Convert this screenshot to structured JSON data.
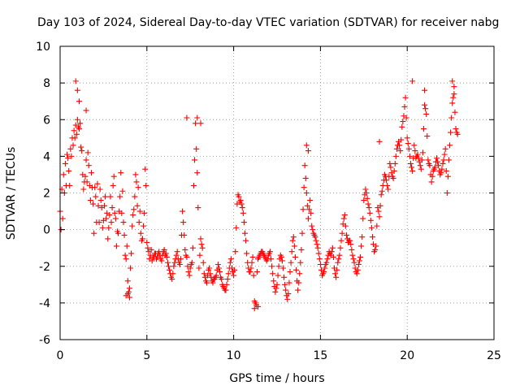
{
  "chart_data": {
    "type": "scatter",
    "title": "Day 103 of 2024, Sidereal Day-to-day VTEC variation (SDTVAR) for receiver nabg",
    "xlabel": "GPS time / hours",
    "ylabel": "SDTVAR / TECUs",
    "xlim": [
      0,
      25
    ],
    "ylim": [
      -6,
      10
    ],
    "xticks": [
      0,
      5,
      10,
      15,
      20,
      25
    ],
    "yticks": [
      -6,
      -4,
      -2,
      0,
      2,
      4,
      6,
      8,
      10
    ],
    "grid": true,
    "marker": "+",
    "series": [
      {
        "name": "SDTVAR",
        "color": "#ff0000",
        "x": [
          0.0,
          0.1,
          0.2,
          0.3,
          0.4,
          0.5,
          0.6,
          0.7,
          0.8,
          0.9,
          1.0,
          1.1,
          1.2,
          1.3,
          1.4,
          1.5,
          1.6,
          1.7,
          1.8,
          1.9,
          2.0,
          2.1,
          2.2,
          2.3,
          2.4,
          2.5,
          2.6,
          2.7,
          2.8,
          2.9,
          3.0,
          3.1,
          3.2,
          3.3,
          3.4,
          3.5,
          3.6,
          3.7,
          3.8,
          3.9,
          4.0,
          4.1,
          4.2,
          4.3,
          4.4,
          4.5,
          4.6,
          4.7,
          4.8,
          4.9,
          5.0,
          5.1,
          5.2,
          5.3,
          5.4,
          5.5,
          5.6,
          5.7,
          5.8,
          5.9,
          6.0,
          6.1,
          6.2,
          6.3,
          6.4,
          6.5,
          6.6,
          6.7,
          6.8,
          6.9,
          7.0,
          7.1,
          7.2,
          7.3,
          7.4,
          7.5,
          7.6,
          7.7,
          7.8,
          7.9,
          8.0,
          8.1,
          8.2,
          8.3,
          8.4,
          8.5,
          8.6,
          8.7,
          8.8,
          8.9,
          9.0,
          9.1,
          9.2,
          9.3,
          9.4,
          9.5,
          9.6,
          9.7,
          9.8,
          9.9,
          10.0,
          10.1,
          10.2,
          10.3,
          10.4,
          10.5,
          10.6,
          10.7,
          10.8,
          10.9,
          11.0,
          11.1,
          11.2,
          11.3,
          11.4,
          11.5,
          11.6,
          11.7,
          11.8,
          11.9,
          12.0,
          12.1,
          12.2,
          12.3,
          12.4,
          12.5,
          12.6,
          12.7,
          12.8,
          12.9,
          13.0,
          13.1,
          13.2,
          13.3,
          13.4,
          13.5,
          13.6,
          13.7,
          13.8,
          13.9,
          14.0,
          14.1,
          14.2,
          14.3,
          14.4,
          14.5,
          14.6,
          14.7,
          14.8,
          14.9,
          15.0,
          15.1,
          15.2,
          15.3,
          15.4,
          15.5,
          15.6,
          15.7,
          15.8,
          15.9,
          16.0,
          16.1,
          16.2,
          16.3,
          16.4,
          16.5,
          16.6,
          16.7,
          16.8,
          16.9,
          17.0,
          17.1,
          17.2,
          17.3,
          17.4,
          17.5,
          17.6,
          17.7,
          17.8,
          17.9,
          18.0,
          18.1,
          18.2,
          18.3,
          18.4,
          18.5,
          18.6,
          18.7,
          18.8,
          18.9,
          19.0,
          19.1,
          19.2,
          19.3,
          19.4,
          19.5,
          19.6,
          19.7,
          19.8,
          19.9,
          20.0,
          20.1,
          20.2,
          20.3,
          20.4,
          20.5,
          20.6,
          20.7,
          20.8,
          20.9,
          21.0,
          21.1,
          21.2,
          21.3,
          21.4,
          21.5,
          21.6,
          21.7,
          21.8,
          21.9,
          22.0,
          22.1,
          22.2,
          22.3,
          22.4,
          22.5,
          22.6,
          22.7,
          22.8,
          22.9,
          0.05,
          0.15,
          0.25,
          0.35,
          0.45,
          0.55,
          0.65,
          0.75,
          0.85,
          0.95,
          1.05,
          1.15,
          1.25,
          1.35,
          1.45,
          1.55,
          1.65,
          1.75,
          1.85,
          1.95,
          2.05,
          2.15,
          2.25,
          2.35,
          2.45,
          2.55,
          2.65,
          2.75,
          2.85,
          2.95,
          3.05,
          3.15,
          3.25,
          3.35,
          3.45,
          3.55,
          3.65,
          3.75,
          3.85,
          3.95,
          4.05,
          4.15,
          4.25,
          4.35,
          4.45,
          4.55,
          4.65,
          4.75,
          4.85,
          4.95,
          5.05,
          5.15,
          5.25,
          5.35,
          5.45,
          5.55,
          5.65,
          5.75,
          5.85,
          5.95,
          6.05,
          6.15,
          6.25,
          6.35,
          6.45,
          6.55,
          6.65,
          6.75,
          6.85,
          6.95,
          7.05,
          7.15,
          7.25,
          7.35,
          7.45,
          7.55,
          7.65,
          7.75,
          7.85,
          7.95,
          8.05,
          8.15,
          8.25,
          8.35,
          8.45,
          8.55,
          8.65,
          8.75,
          8.85,
          8.95,
          9.05,
          9.15,
          9.25,
          9.35,
          9.45,
          9.55,
          9.65,
          9.75,
          9.85,
          9.95,
          10.05,
          10.15,
          10.25,
          10.35,
          10.45,
          10.55,
          10.65,
          10.75,
          10.85,
          10.95,
          11.05,
          11.15,
          11.25,
          11.35,
          11.45,
          11.55,
          11.65,
          11.75,
          11.85,
          11.95,
          12.05,
          12.15,
          12.25,
          12.35,
          12.45,
          12.55,
          12.65,
          12.75,
          12.85,
          12.95,
          13.05,
          13.15,
          13.25,
          13.35,
          13.45,
          13.55,
          13.65,
          13.75,
          13.85,
          13.95,
          14.05,
          14.15,
          14.25,
          14.35,
          14.45,
          14.55,
          14.65,
          14.75,
          14.85,
          14.95,
          15.05,
          15.15,
          15.25,
          15.35,
          15.45,
          15.55,
          15.65,
          15.75,
          15.85,
          15.95,
          16.05,
          16.15,
          16.25,
          16.35,
          16.45,
          16.55,
          16.65,
          16.75,
          16.85,
          16.95,
          17.05,
          17.15,
          17.25,
          17.35,
          17.45,
          17.55,
          17.65,
          17.75,
          17.85,
          17.95,
          18.05,
          18.15,
          18.25,
          18.35,
          18.45,
          18.55,
          18.65,
          18.75,
          18.85,
          18.95,
          19.05,
          19.15,
          19.25,
          19.35,
          19.45,
          19.55,
          19.65,
          19.75,
          19.85,
          19.95,
          20.05,
          20.15,
          20.25,
          20.35,
          20.45,
          20.55,
          20.65,
          20.75,
          20.85,
          20.95,
          21.05,
          21.15,
          21.25,
          21.35,
          21.45,
          21.55,
          21.65,
          21.75,
          21.85,
          21.95,
          22.05,
          22.15,
          22.25,
          22.35,
          22.45,
          22.55,
          22.65,
          22.75,
          22.85,
          0.9,
          1.0,
          1.1,
          1.5,
          3.8,
          3.9,
          4.0,
          7.3,
          7.9,
          8.1,
          11.2,
          11.4,
          14.2,
          14.3,
          18.4,
          20.3,
          21.0,
          22.6,
          22.7
        ],
        "y": [
          1.0,
          2.2,
          3.0,
          3.6,
          4.1,
          3.2,
          4.4,
          5.0,
          5.4,
          5.7,
          6.0,
          5.5,
          4.5,
          3.0,
          2.6,
          3.8,
          4.2,
          2.4,
          3.1,
          1.4,
          2.3,
          0.4,
          1.3,
          2.2,
          1.2,
          0.5,
          1.8,
          0.9,
          0.1,
          1.8,
          1.2,
          2.9,
          0.6,
          -0.1,
          1.0,
          3.1,
          2.1,
          -0.3,
          -1.6,
          -2.8,
          -3.2,
          -1.3,
          0.8,
          1.8,
          2.6,
          2.3,
          1.0,
          -0.6,
          0.2,
          3.3,
          -0.7,
          -1.2,
          -1.4,
          -1.7,
          -1.5,
          -1.3,
          -1.5,
          -1.2,
          -1.6,
          -1.4,
          -1.1,
          -1.3,
          -1.8,
          -2.2,
          -2.6,
          -2.4,
          -1.8,
          -1.4,
          -1.6,
          -1.9,
          -0.3,
          0.4,
          -1.1,
          -1.5,
          -2.3,
          -2.1,
          -1.8,
          2.4,
          5.8,
          3.1,
          -2.1,
          -0.5,
          -1.0,
          -2.4,
          -2.8,
          -2.5,
          -2.1,
          -2.6,
          -2.9,
          -2.7,
          -2.5,
          -1.9,
          -2.3,
          -2.7,
          -3.1,
          -3.3,
          -3.0,
          -2.4,
          -1.8,
          -2.1,
          -2.5,
          -1.2,
          1.4,
          1.8,
          1.6,
          1.2,
          0.4,
          -0.6,
          -1.8,
          -2.3,
          -2.1,
          -1.5,
          -3.9,
          -4.1,
          -1.6,
          -1.4,
          -1.2,
          -1.3,
          -1.5,
          -1.7,
          -1.4,
          -1.2,
          -2.0,
          -2.8,
          -3.4,
          -3.0,
          -2.0,
          -1.4,
          -1.7,
          -2.6,
          -3.3,
          -3.8,
          -2.9,
          -1.8,
          -0.6,
          -0.9,
          -2.2,
          -3.3,
          -2.4,
          -1.1,
          1.1,
          3.5,
          2.0,
          0.6,
          1.6,
          0.2,
          -0.2,
          -0.4,
          -0.8,
          -1.3,
          -1.9,
          -2.5,
          -2.3,
          -1.9,
          -1.6,
          -1.2,
          -1.4,
          -1.0,
          -2.1,
          -2.6,
          -1.8,
          -1.4,
          -0.6,
          0.3,
          0.8,
          -0.3,
          -0.7,
          -0.6,
          -1.1,
          -1.6,
          -2.1,
          -2.4,
          -1.9,
          -1.5,
          -0.4,
          1.6,
          2.2,
          1.7,
          1.2,
          0.5,
          -0.4,
          -1.2,
          -0.9,
          1.2,
          0.7,
          1.9,
          2.4,
          3.0,
          2.7,
          2.2,
          3.6,
          3.1,
          2.8,
          3.6,
          4.4,
          4.8,
          4.3,
          5.6,
          6.2,
          7.2,
          5.0,
          4.4,
          3.6,
          3.2,
          4.6,
          3.9,
          4.1,
          3.7,
          3.3,
          4.2,
          6.8,
          6.3,
          3.8,
          3.5,
          2.6,
          3.2,
          3.4,
          3.9,
          3.5,
          3.0,
          3.3,
          3.8,
          4.4,
          2.0,
          3.8,
          5.3,
          6.9,
          7.4,
          5.5,
          5.2,
          0.0,
          0.6,
          2.0,
          2.4,
          3.9,
          2.4,
          4.0,
          4.6,
          5.0,
          5.2,
          5.6,
          5.8,
          4.3,
          2.2,
          2.9,
          2.6,
          3.5,
          1.6,
          2.3,
          -0.2,
          1.8,
          2.5,
          0.4,
          1.6,
          0.1,
          1.3,
          0.6,
          -0.5,
          0.8,
          0.4,
          2.4,
          0.9,
          -0.9,
          -0.2,
          1.8,
          0.9,
          0.4,
          -1.4,
          -0.9,
          -3.4,
          -2.1,
          0.2,
          1.1,
          3.0,
          1.3,
          0.4,
          -0.2,
          -0.5,
          0.9,
          2.4,
          -1.0,
          -1.6,
          -1.1,
          -1.5,
          -1.3,
          -1.6,
          -1.3,
          -1.4,
          -1.7,
          -1.2,
          -1.4,
          -1.5,
          -2.0,
          -2.4,
          -2.7,
          -2.0,
          -1.6,
          -1.2,
          -1.8,
          -1.6,
          1.0,
          -0.3,
          -1.4,
          -2.0,
          -2.5,
          -1.9,
          -1.0,
          3.8,
          4.4,
          1.2,
          -1.4,
          -0.8,
          -1.8,
          -2.6,
          -2.9,
          -2.2,
          -2.4,
          -2.8,
          -2.7,
          -2.6,
          -2.2,
          -2.1,
          -2.6,
          -3.0,
          -3.2,
          -3.3,
          -2.7,
          -2.1,
          -1.6,
          -2.3,
          -2.2,
          0.1,
          1.9,
          1.5,
          1.4,
          0.9,
          -0.2,
          -1.3,
          -2.1,
          -2.3,
          -1.8,
          -2.5,
          -4.0,
          -2.3,
          -1.5,
          -1.3,
          -1.2,
          -1.4,
          -1.6,
          -1.6,
          -1.3,
          -1.6,
          -2.4,
          -3.1,
          -3.2,
          -2.5,
          -1.6,
          -1.5,
          -2.1,
          -3.0,
          -3.6,
          -3.5,
          -2.3,
          -1.2,
          -0.4,
          -1.5,
          -2.8,
          -2.9,
          -1.8,
          -0.2,
          2.3,
          2.8,
          1.3,
          1.1,
          0.9,
          0.0,
          -0.3,
          -0.6,
          -1.0,
          -1.6,
          -2.2,
          -2.4,
          -2.1,
          -1.8,
          -1.4,
          -1.3,
          -1.2,
          -1.5,
          -2.4,
          -2.2,
          -1.6,
          -1.0,
          -0.2,
          0.6,
          0.2,
          -0.5,
          -0.6,
          -0.8,
          -1.4,
          -1.8,
          -2.3,
          -2.2,
          -1.7,
          -0.9,
          0.6,
          1.9,
          2.0,
          1.4,
          0.9,
          0.1,
          -0.8,
          -1.1,
          0.2,
          1.0,
          1.3,
          2.1,
          2.7,
          2.9,
          2.4,
          2.9,
          3.4,
          2.9,
          3.2,
          4.0,
          4.6,
          4.6,
          4.9,
          5.9,
          6.7,
          6.1,
          4.7,
          4.0,
          3.4,
          3.9,
          4.3,
          4.0,
          3.9,
          3.5,
          3.8,
          5.5,
          6.6,
          5.1,
          3.6,
          3.0,
          2.9,
          3.3,
          3.7,
          3.7,
          3.2,
          3.1,
          3.6,
          4.1,
          3.2,
          2.9,
          4.6,
          6.1,
          7.2,
          6.4,
          5.3,
          8.1,
          7.6,
          7.0,
          6.5,
          -3.6,
          -3.5,
          -3.7,
          6.1,
          6.1,
          5.8,
          -4.3,
          -4.2,
          4.6,
          4.3,
          4.8,
          8.1,
          7.6,
          8.1,
          7.8
        ]
      }
    ]
  }
}
